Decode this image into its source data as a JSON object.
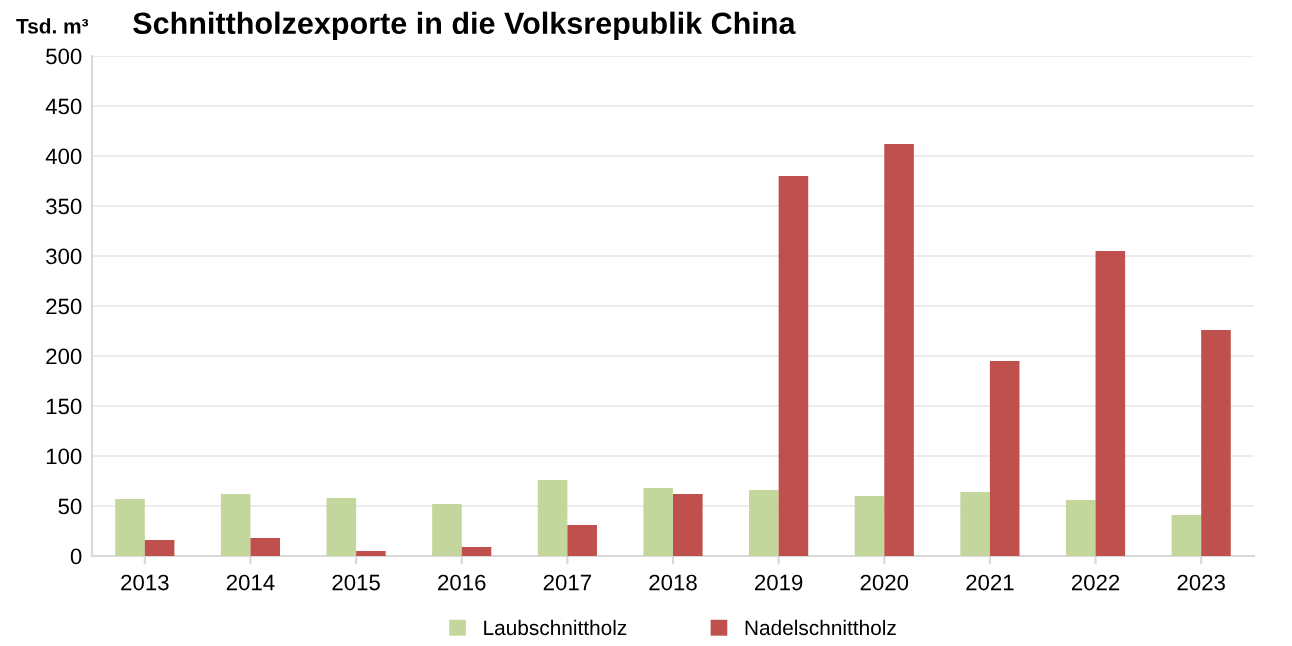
{
  "chart_data": {
    "type": "bar",
    "title": "Schnittholzexporte in die Volksrepublik China",
    "ylabel": "Tsd. m³",
    "categories": [
      "2013",
      "2014",
      "2015",
      "2016",
      "2017",
      "2018",
      "2019",
      "2020",
      "2021",
      "2022",
      "2023"
    ],
    "series": [
      {
        "name": "Laubschnittholz",
        "color": "#c3d69b",
        "values": [
          57,
          62,
          58,
          52,
          76,
          68,
          66,
          60,
          64,
          56,
          41
        ]
      },
      {
        "name": "Nadelschnittholz",
        "color": "#c0504d",
        "values": [
          16,
          18,
          5,
          9,
          31,
          62,
          380,
          412,
          195,
          305,
          226
        ]
      }
    ],
    "ylim": [
      0,
      500
    ],
    "yticks": [
      0,
      50,
      100,
      150,
      200,
      250,
      300,
      350,
      400,
      450,
      500
    ],
    "grid": "y",
    "legend": "bottom"
  }
}
